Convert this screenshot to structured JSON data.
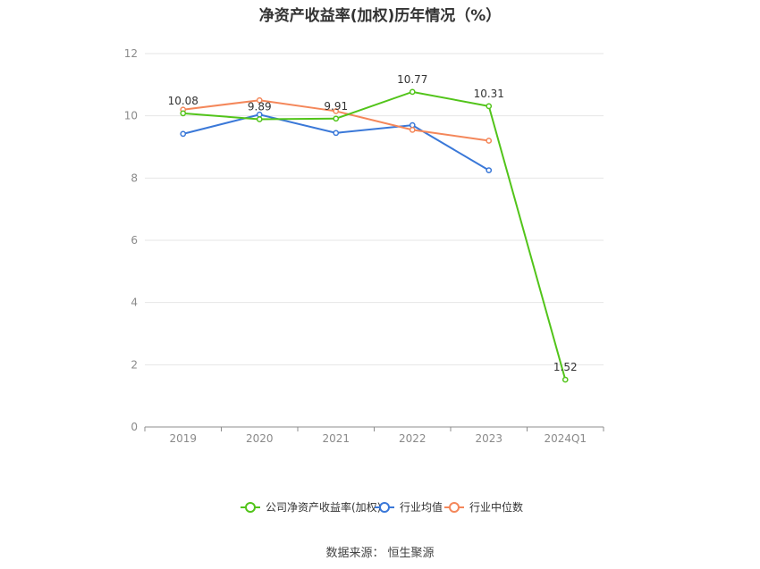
{
  "chart_data": {
    "type": "line",
    "title": "净资产收益率(加权)历年情况（%）",
    "categories": [
      "2019",
      "2020",
      "2021",
      "2022",
      "2023",
      "2024Q1"
    ],
    "ylim": [
      0,
      12
    ],
    "yticks": [
      0,
      2,
      4,
      6,
      8,
      10,
      12
    ],
    "grid": true,
    "legend_position": "bottom-center",
    "series": [
      {
        "name": "公司净资产收益率(加权)",
        "color": "#52c41a",
        "values": [
          10.08,
          9.89,
          9.91,
          10.77,
          10.31,
          1.52
        ],
        "labels": [
          "10.08",
          "9.89",
          "9.91",
          "10.77",
          "10.31",
          "1.52"
        ]
      },
      {
        "name": "行业均值",
        "color": "#3a78d8",
        "values": [
          9.42,
          10.04,
          9.45,
          9.7,
          8.25,
          null
        ]
      },
      {
        "name": "行业中位数",
        "color": "#f4875a",
        "values": [
          10.2,
          10.5,
          10.15,
          9.55,
          9.2,
          null
        ]
      }
    ]
  },
  "source": {
    "label": "数据来源：",
    "name": "恒生聚源"
  }
}
